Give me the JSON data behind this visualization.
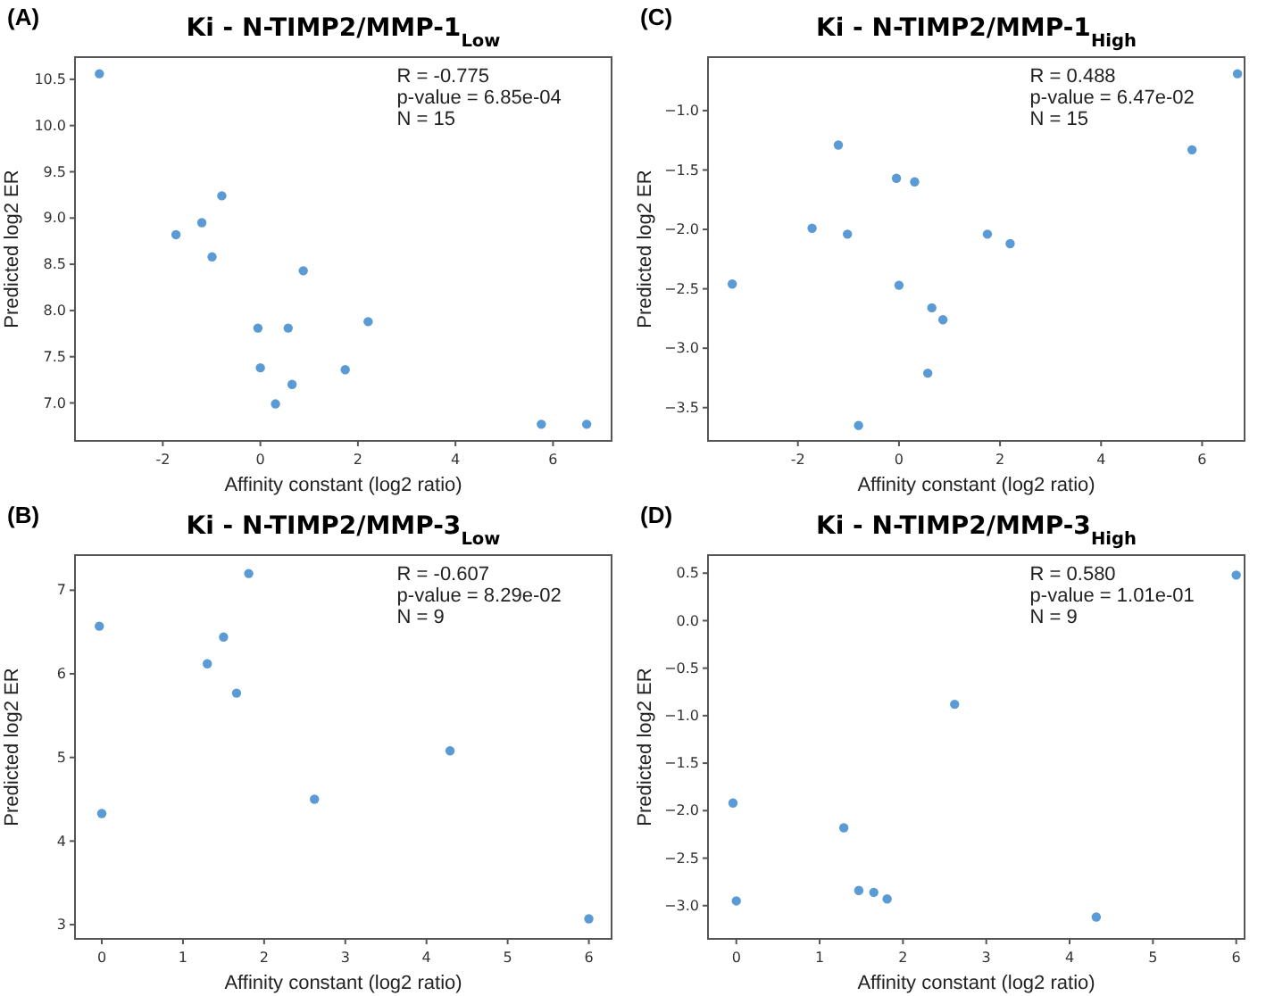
{
  "chart_data": [
    {
      "type": "scatter",
      "title": "Ki - N-TIMP2/MMP-1$_{Low}$",
      "xlabel": "Affinity constant (log2 ratio)",
      "ylabel": "Predicted log2 ER",
      "annotations": [
        "(A)",
        "R = -0.775",
        "p-value = 6.85e-04",
        "N = 15"
      ],
      "marker": "circle",
      "grid": false,
      "xlim": [
        -3.8,
        7.2
      ],
      "xticks": [
        -2,
        0,
        2,
        4,
        6
      ],
      "ylim": [
        6.59,
        10.74
      ],
      "yticks": [
        {
          "value": 7,
          "label": "7.0"
        },
        7.5,
        {
          "value": 8,
          "label": "8.0"
        },
        8.5,
        {
          "value": 9,
          "label": "9.0"
        },
        9.5,
        {
          "value": 10,
          "label": "10.0"
        },
        10.5
      ],
      "series": [
        {
          "color": "#5b9bd5",
          "x": [
            -3.3,
            -1.73,
            -1.2,
            -0.79,
            -0.99,
            0.88,
            -0.05,
            0.57,
            2.21,
            0.0,
            1.74,
            0.65,
            0.31,
            5.76,
            6.69
          ],
          "values": [
            10.56,
            8.82,
            8.95,
            9.24,
            8.58,
            8.43,
            7.81,
            7.81,
            7.88,
            7.38,
            7.36,
            7.2,
            6.99,
            6.77,
            6.77
          ]
        }
      ]
    },
    {
      "type": "scatter",
      "title": "Ki - N-TIMP2/MMP-1$_{High}$",
      "xlabel": "Affinity constant (log2 ratio)",
      "ylabel": "Predicted log2 ER",
      "annotations": [
        "(C)",
        "R = 0.488",
        "p-value = 6.47e-02",
        "N = 15"
      ],
      "marker": "circle",
      "grid": false,
      "xlim": [
        -3.78,
        6.84
      ],
      "xticks": [
        -2,
        0,
        2,
        4,
        6
      ],
      "ylim": [
        -3.78,
        -0.55
      ],
      "yticks": [
        {
          "value": -3.5,
          "label": "−3.5"
        },
        {
          "value": -3,
          "label": "−3.0"
        },
        {
          "value": -2.5,
          "label": "−2.5"
        },
        {
          "value": -2,
          "label": "−2.0"
        },
        {
          "value": -1.5,
          "label": "−1.5"
        },
        {
          "value": -1,
          "label": "−1.0"
        }
      ],
      "series": [
        {
          "color": "#5b9bd5",
          "x": [
            -3.3,
            -1.72,
            -1.2,
            -1.02,
            -0.8,
            -0.05,
            0.0,
            0.31,
            0.57,
            0.65,
            0.87,
            1.75,
            2.2,
            5.8,
            6.7
          ],
          "values": [
            -2.46,
            -1.99,
            -1.29,
            -2.04,
            -3.65,
            -1.57,
            -2.47,
            -1.6,
            -3.21,
            -2.66,
            -2.76,
            -2.04,
            -2.12,
            -1.33,
            -0.69
          ]
        }
      ]
    },
    {
      "type": "scatter",
      "title": "Ki - N-TIMP2/MMP-3$_{Low}$",
      "xlabel": "Affinity constant (log2 ratio)",
      "ylabel": "Predicted log2 ER",
      "annotations": [
        "(B)",
        "R = -0.607",
        "p-value = 8.29e-02",
        "N = 9"
      ],
      "marker": "circle",
      "grid": false,
      "xlim": [
        -0.33,
        6.28
      ],
      "xticks": [
        0,
        1,
        2,
        3,
        4,
        5,
        6
      ],
      "ylim": [
        2.83,
        7.42
      ],
      "yticks": [
        3,
        4,
        5,
        6,
        7
      ],
      "series": [
        {
          "color": "#5b9bd5",
          "x": [
            -0.03,
            0.0,
            1.3,
            1.5,
            1.66,
            1.81,
            2.62,
            4.29,
            6.0
          ],
          "values": [
            6.57,
            4.33,
            6.12,
            6.44,
            5.77,
            7.2,
            4.5,
            5.08,
            3.07
          ]
        }
      ]
    },
    {
      "type": "scatter",
      "title": "Ki - N-TIMP2/MMP-3$_{High}$",
      "xlabel": "Affinity constant (log2 ratio)",
      "ylabel": "Predicted log2 ER",
      "annotations": [
        "(D)",
        "R = 0.580",
        "p-value = 1.01e-01",
        "N = 9"
      ],
      "marker": "circle",
      "grid": false,
      "xlim": [
        -0.34,
        6.1
      ],
      "xticks": [
        0,
        1,
        2,
        3,
        4,
        5,
        6
      ],
      "ylim": [
        -3.35,
        0.69
      ],
      "yticks": [
        {
          "value": -3,
          "label": "−3.0"
        },
        {
          "value": -2.5,
          "label": "−2.5"
        },
        {
          "value": -2,
          "label": "−2.0"
        },
        {
          "value": -1.5,
          "label": "−1.5"
        },
        {
          "value": -1,
          "label": "−1.0"
        },
        {
          "value": -0.5,
          "label": "−0.5"
        },
        {
          "value": 0,
          "label": "0.0"
        },
        {
          "value": 0.5,
          "label": "0.5"
        }
      ],
      "series": [
        {
          "color": "#5b9bd5",
          "x": [
            -0.04,
            0.0,
            1.29,
            1.47,
            1.65,
            1.81,
            2.62,
            4.32,
            6.0
          ],
          "values": [
            -1.92,
            -2.95,
            -2.18,
            -2.84,
            -2.86,
            -2.93,
            -0.88,
            -3.12,
            0.48
          ]
        }
      ]
    }
  ]
}
